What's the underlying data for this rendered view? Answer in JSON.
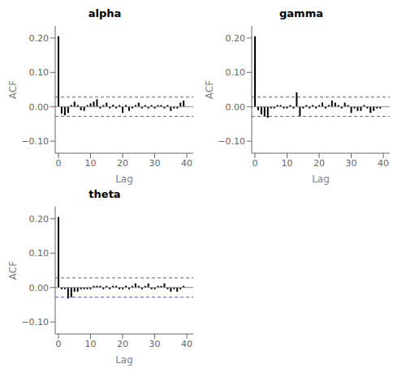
{
  "chart_data": [
    {
      "type": "bar",
      "title": "alpha",
      "x_label": "Lag",
      "y_label": "ACF",
      "color": "#000000",
      "x": [
        0,
        1,
        2,
        3,
        4,
        5,
        6,
        7,
        8,
        9,
        10,
        11,
        12,
        13,
        14,
        15,
        16,
        17,
        18,
        19,
        20,
        21,
        22,
        23,
        24,
        25,
        26,
        27,
        28,
        29,
        30,
        31,
        32,
        33,
        34,
        35,
        36,
        37,
        38,
        39
      ],
      "values": [
        0.205,
        -0.02,
        -0.025,
        -0.018,
        0.005,
        0.015,
        0.005,
        -0.01,
        -0.012,
        0.005,
        0.01,
        0.015,
        0.022,
        -0.005,
        0.005,
        0.012,
        -0.005,
        0.006,
        -0.005,
        0.005,
        -0.018,
        0.005,
        -0.012,
        -0.005,
        0.005,
        0.012,
        -0.005,
        0.005,
        -0.005,
        0.005,
        -0.005,
        0.005,
        0.005,
        -0.005,
        0.005,
        -0.012,
        -0.005,
        -0.005,
        0.012,
        0.018
      ],
      "xlim": [
        -1,
        42
      ],
      "xticks": [
        0,
        10,
        20,
        30,
        40
      ],
      "ylim": [
        -0.135,
        0.235
      ],
      "yticks": [
        {
          "value": -0.1,
          "label": "−0.10"
        },
        {
          "value": 0.0,
          "label": "0.00"
        },
        {
          "value": 0.1,
          "label": "0.10"
        },
        {
          "value": 0.2,
          "label": "0.20"
        }
      ],
      "reference_lines": [
        {
          "y": 0,
          "color": "#888888",
          "line_style": "solid"
        },
        {
          "y": 0.028,
          "color": "#5a5aaa",
          "line_style": "dashed"
        },
        {
          "y": -0.028,
          "color": "#5a5aaa",
          "line_style": "dashed"
        }
      ]
    },
    {
      "type": "bar",
      "title": "gamma",
      "x_label": "Lag",
      "y_label": "ACF",
      "color": "#000000",
      "x": [
        0,
        1,
        2,
        3,
        4,
        5,
        6,
        7,
        8,
        9,
        10,
        11,
        12,
        13,
        14,
        15,
        16,
        17,
        18,
        19,
        20,
        21,
        22,
        23,
        24,
        25,
        26,
        27,
        28,
        29,
        30,
        31,
        32,
        33,
        34,
        35,
        36,
        37,
        38,
        39
      ],
      "values": [
        0.205,
        -0.01,
        -0.022,
        -0.028,
        -0.032,
        -0.005,
        -0.005,
        0.005,
        0.005,
        -0.005,
        -0.005,
        0.005,
        -0.005,
        0.042,
        -0.028,
        -0.005,
        0.005,
        -0.005,
        0.005,
        -0.005,
        0.005,
        0.012,
        -0.005,
        0.005,
        0.018,
        0.012,
        0.005,
        -0.005,
        0.012,
        0.005,
        -0.018,
        -0.005,
        -0.012,
        -0.012,
        0.005,
        -0.005,
        -0.018,
        -0.012,
        -0.005,
        -0.005
      ],
      "xlim": [
        -1,
        42
      ],
      "xticks": [
        0,
        10,
        20,
        30,
        40
      ],
      "ylim": [
        -0.135,
        0.235
      ],
      "yticks": [
        {
          "value": -0.1,
          "label": "−0.10"
        },
        {
          "value": 0.0,
          "label": "0.00"
        },
        {
          "value": 0.1,
          "label": "0.10"
        },
        {
          "value": 0.2,
          "label": "0.20"
        }
      ],
      "reference_lines": [
        {
          "y": 0,
          "color": "#888888",
          "line_style": "solid"
        },
        {
          "y": 0.028,
          "color": "#5a5aaa",
          "line_style": "dashed"
        },
        {
          "y": -0.028,
          "color": "#5a5aaa",
          "line_style": "dashed"
        }
      ]
    },
    {
      "type": "bar",
      "title": "theta",
      "x_label": "Lag",
      "y_label": "ACF",
      "color": "#000000",
      "x": [
        0,
        1,
        2,
        3,
        4,
        5,
        6,
        7,
        8,
        9,
        10,
        11,
        12,
        13,
        14,
        15,
        16,
        17,
        18,
        19,
        20,
        21,
        22,
        23,
        24,
        25,
        26,
        27,
        28,
        29,
        30,
        31,
        32,
        33,
        34,
        35,
        36,
        37,
        38,
        39
      ],
      "values": [
        0.205,
        -0.005,
        -0.005,
        -0.032,
        -0.028,
        -0.012,
        -0.012,
        -0.005,
        -0.005,
        -0.005,
        -0.005,
        0.005,
        0.005,
        0.005,
        -0.005,
        0.005,
        -0.005,
        0.005,
        0.005,
        -0.005,
        -0.005,
        0.005,
        -0.005,
        0.005,
        0.012,
        0.005,
        -0.005,
        0.005,
        0.012,
        -0.005,
        -0.005,
        0.005,
        0.005,
        0.012,
        -0.005,
        -0.012,
        -0.005,
        -0.012,
        -0.005,
        0.005
      ],
      "xlim": [
        -1,
        42
      ],
      "xticks": [
        0,
        10,
        20,
        30,
        40
      ],
      "ylim": [
        -0.135,
        0.235
      ],
      "yticks": [
        {
          "value": -0.1,
          "label": "−0.10"
        },
        {
          "value": 0.0,
          "label": "0.00"
        },
        {
          "value": 0.1,
          "label": "0.10"
        },
        {
          "value": 0.2,
          "label": "0.20"
        }
      ],
      "reference_lines": [
        {
          "y": 0,
          "color": "#888888",
          "line_style": "solid"
        },
        {
          "y": 0.028,
          "color": "#5a5aaa",
          "line_style": "dashed"
        },
        {
          "y": -0.028,
          "color": "#5a5aaa",
          "line_style": "dashed"
        }
      ]
    }
  ]
}
